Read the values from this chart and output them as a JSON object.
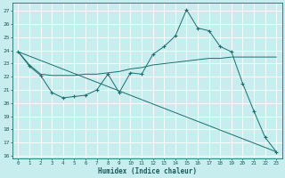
{
  "xlabel": "Humidex (Indice chaleur)",
  "background_color": "#c8edee",
  "grid_color": "#aadddd",
  "line_color": "#1a6e6e",
  "xlim": [
    -0.5,
    23.5
  ],
  "ylim": [
    15.8,
    27.6
  ],
  "yticks": [
    16,
    17,
    18,
    19,
    20,
    21,
    22,
    23,
    24,
    25,
    26,
    27
  ],
  "xticks": [
    0,
    1,
    2,
    3,
    4,
    5,
    6,
    7,
    8,
    9,
    10,
    11,
    12,
    13,
    14,
    15,
    16,
    17,
    18,
    19,
    20,
    21,
    22,
    23
  ],
  "line1_x": [
    0,
    1,
    2,
    3,
    4,
    5,
    6,
    7,
    8,
    9,
    10,
    11,
    12,
    13,
    14,
    15,
    16,
    17,
    18,
    19,
    20,
    21,
    22,
    23
  ],
  "line1_y": [
    23.9,
    22.8,
    22.1,
    20.8,
    20.4,
    20.5,
    20.6,
    21.0,
    22.2,
    20.8,
    22.3,
    22.2,
    23.7,
    24.3,
    25.1,
    27.1,
    25.7,
    25.5,
    24.3,
    23.9,
    21.5,
    19.4,
    17.4,
    16.3
  ],
  "line2_x": [
    0,
    1,
    2,
    3,
    4,
    5,
    6,
    7,
    8,
    9,
    10,
    11,
    12,
    13,
    14,
    15,
    16,
    17,
    18,
    19,
    20,
    21,
    22,
    23
  ],
  "line2_y": [
    23.9,
    22.9,
    22.2,
    22.1,
    22.1,
    22.1,
    22.2,
    22.2,
    22.3,
    22.4,
    22.6,
    22.7,
    22.9,
    23.0,
    23.1,
    23.2,
    23.3,
    23.4,
    23.4,
    23.5,
    23.5,
    23.5,
    23.5,
    23.5
  ],
  "line3_x": [
    0,
    23
  ],
  "line3_y": [
    23.9,
    16.3
  ]
}
